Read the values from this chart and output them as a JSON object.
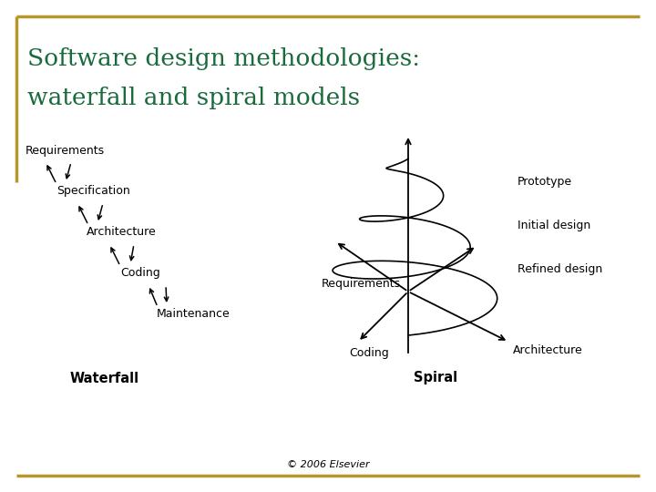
{
  "title_line1": "Software design methodologies:",
  "title_line2": "waterfall and spiral models",
  "title_color": "#1a6b3c",
  "copyright": "© 2006 Elsevier",
  "border_color": "#b8962e",
  "bg_color": "#ffffff",
  "waterfall_steps": [
    "Requirements",
    "Specification",
    "Architecture",
    "Coding",
    "Maintenance"
  ],
  "waterfall_label": "Waterfall",
  "spiral_labels": [
    "Prototype",
    "Initial design",
    "Refined design"
  ],
  "spiral_label": "Spiral",
  "architecture_label": "Architecture",
  "requirements_label": "Requirements",
  "coding_label": "Coding"
}
